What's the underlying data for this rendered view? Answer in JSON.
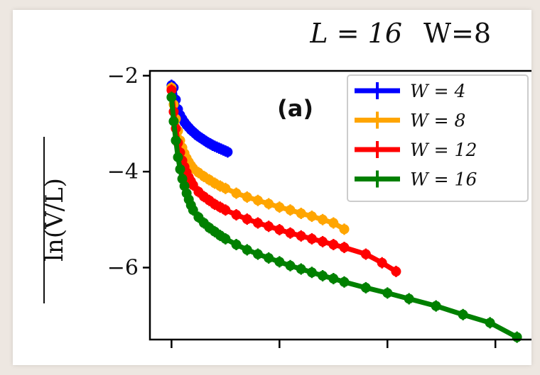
{
  "chart_data": {
    "type": "line",
    "title_math": "L = 16",
    "title_extra": "W=8",
    "panel_label": "(a)",
    "ylabel": "ln(V/L)",
    "ylim": [
      -7.5,
      -1.9
    ],
    "xlim": [
      -0.2,
      3.4
    ],
    "yticks": [
      -2,
      -4,
      -6
    ],
    "ytick_labels": [
      "−2",
      "−4",
      "−6"
    ],
    "xticks": [
      0,
      1,
      2,
      3
    ],
    "legend_position": "top-right",
    "series": [
      {
        "name": "W = 4",
        "color": "#0000ff",
        "x": [
          0.0,
          0.02,
          0.04,
          0.06,
          0.08,
          0.1,
          0.12,
          0.14,
          0.16,
          0.18,
          0.2,
          0.22,
          0.24,
          0.26,
          0.28,
          0.3,
          0.32,
          0.34,
          0.36,
          0.38,
          0.4,
          0.42,
          0.44,
          0.46,
          0.48,
          0.5,
          0.52
        ],
        "y": [
          -2.2,
          -2.25,
          -2.5,
          -2.7,
          -2.82,
          -2.9,
          -2.97,
          -3.03,
          -3.08,
          -3.13,
          -3.17,
          -3.21,
          -3.25,
          -3.28,
          -3.31,
          -3.34,
          -3.37,
          -3.4,
          -3.42,
          -3.45,
          -3.47,
          -3.49,
          -3.51,
          -3.53,
          -3.55,
          -3.57,
          -3.59
        ]
      },
      {
        "name": "W = 8",
        "color": "#ffa500",
        "x": [
          0.0,
          0.02,
          0.04,
          0.06,
          0.08,
          0.1,
          0.12,
          0.14,
          0.16,
          0.18,
          0.2,
          0.25,
          0.3,
          0.35,
          0.4,
          0.45,
          0.5,
          0.6,
          0.7,
          0.8,
          0.9,
          1.0,
          1.1,
          1.2,
          1.3,
          1.4,
          1.5,
          1.6
        ],
        "y": [
          -2.25,
          -2.6,
          -2.9,
          -3.15,
          -3.35,
          -3.5,
          -3.62,
          -3.72,
          -3.8,
          -3.87,
          -3.93,
          -4.02,
          -4.1,
          -4.17,
          -4.24,
          -4.3,
          -4.35,
          -4.45,
          -4.53,
          -4.6,
          -4.67,
          -4.74,
          -4.8,
          -4.87,
          -4.93,
          -5.0,
          -5.07,
          -5.2
        ]
      },
      {
        "name": "W = 12",
        "color": "#ff0000",
        "x": [
          0.0,
          0.02,
          0.04,
          0.06,
          0.08,
          0.1,
          0.12,
          0.14,
          0.16,
          0.18,
          0.2,
          0.25,
          0.3,
          0.35,
          0.4,
          0.45,
          0.5,
          0.6,
          0.7,
          0.8,
          0.9,
          1.0,
          1.1,
          1.2,
          1.3,
          1.4,
          1.5,
          1.6,
          1.8,
          1.95,
          2.08
        ],
        "y": [
          -2.3,
          -2.75,
          -3.1,
          -3.4,
          -3.6,
          -3.77,
          -3.9,
          -4.02,
          -4.12,
          -4.2,
          -4.28,
          -4.42,
          -4.52,
          -4.6,
          -4.68,
          -4.74,
          -4.8,
          -4.9,
          -4.99,
          -5.07,
          -5.14,
          -5.21,
          -5.28,
          -5.34,
          -5.4,
          -5.46,
          -5.52,
          -5.58,
          -5.72,
          -5.9,
          -6.08
        ]
      },
      {
        "name": "W = 16",
        "color": "#008000",
        "x": [
          0.0,
          0.02,
          0.04,
          0.06,
          0.08,
          0.1,
          0.12,
          0.14,
          0.16,
          0.18,
          0.2,
          0.25,
          0.3,
          0.35,
          0.4,
          0.45,
          0.5,
          0.6,
          0.7,
          0.8,
          0.9,
          1.0,
          1.1,
          1.2,
          1.3,
          1.4,
          1.5,
          1.6,
          1.8,
          2.0,
          2.2,
          2.45,
          2.7,
          2.95,
          3.2
        ],
        "y": [
          -2.45,
          -2.95,
          -3.35,
          -3.7,
          -3.95,
          -4.15,
          -4.3,
          -4.45,
          -4.58,
          -4.7,
          -4.8,
          -4.95,
          -5.07,
          -5.17,
          -5.25,
          -5.33,
          -5.4,
          -5.52,
          -5.63,
          -5.72,
          -5.8,
          -5.88,
          -5.96,
          -6.03,
          -6.1,
          -6.17,
          -6.23,
          -6.3,
          -6.42,
          -6.53,
          -6.65,
          -6.8,
          -6.98,
          -7.15,
          -7.45
        ]
      }
    ]
  }
}
